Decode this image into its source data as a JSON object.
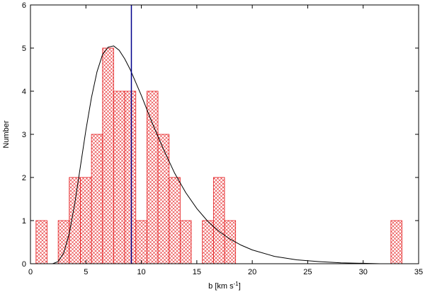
{
  "chart_data": {
    "type": "bar",
    "xlabel": "b [km s",
    "xlabel_superscript": "-1",
    "xlabel_suffix": "]",
    "ylabel": "Number",
    "xlim": [
      0,
      35
    ],
    "ylim": [
      0,
      6
    ],
    "xticks": [
      "0",
      "5",
      "10",
      "15",
      "20",
      "25",
      "30",
      "35"
    ],
    "yticks": [
      "0",
      "1",
      "2",
      "3",
      "4",
      "5",
      "6"
    ],
    "bin_width": 1,
    "histogram": {
      "bin_starts": [
        0.5,
        2.5,
        3.5,
        4.5,
        5.5,
        6.5,
        7.5,
        8.5,
        9.5,
        10.5,
        11.5,
        12.5,
        13.5,
        15.5,
        16.5,
        17.5,
        32.5
      ],
      "counts": [
        1,
        1,
        2,
        2,
        3,
        5,
        4,
        4,
        1,
        4,
        3,
        2,
        1,
        1,
        2,
        1,
        1
      ]
    },
    "fit_curve": {
      "x": [
        2.0,
        2.5,
        3.0,
        3.5,
        4.0,
        4.5,
        5.0,
        5.5,
        6.0,
        6.5,
        7.0,
        7.5,
        8.0,
        8.5,
        9.0,
        9.5,
        10.0,
        11.0,
        12.0,
        13.0,
        14.0,
        15.0,
        16.0,
        17.0,
        18.0,
        19.0,
        20.0,
        22.0,
        24.0,
        26.0,
        28.0,
        30.0,
        31.5
      ],
      "y": [
        0.0,
        0.05,
        0.25,
        0.7,
        1.4,
        2.25,
        3.1,
        3.85,
        4.45,
        4.85,
        5.02,
        5.05,
        4.95,
        4.75,
        4.5,
        4.2,
        3.9,
        3.25,
        2.65,
        2.1,
        1.65,
        1.28,
        0.98,
        0.75,
        0.57,
        0.43,
        0.32,
        0.17,
        0.09,
        0.05,
        0.02,
        0.01,
        0.0
      ]
    },
    "vertical_line_x": 9.1,
    "colors": {
      "bars": "#e41a1c",
      "curve": "#000000",
      "vertical_line": "#00008b"
    },
    "grid": false
  }
}
